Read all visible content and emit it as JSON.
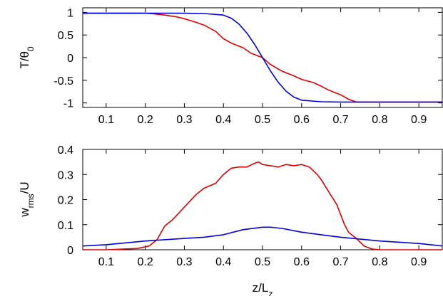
{
  "chart_data": [
    {
      "type": "line",
      "xlabel": "",
      "ylabel": "T/θ",
      "ylabel_subscript": "0",
      "xlim": [
        0.04,
        0.96
      ],
      "ylim": [
        -1.1,
        1.1
      ],
      "xticks": [
        "0.1",
        "0.2",
        "0.3",
        "0.4",
        "0.5",
        "0.6",
        "0.7",
        "0.8",
        "0.9"
      ],
      "yticks": [
        "1",
        "0.5",
        "0",
        "-0.5",
        "-1"
      ],
      "grid": false,
      "series": [
        {
          "color": "#e00000",
          "x": [
            0.04,
            0.1,
            0.15,
            0.2,
            0.22,
            0.25,
            0.28,
            0.3,
            0.33,
            0.35,
            0.38,
            0.4,
            0.42,
            0.45,
            0.47,
            0.5,
            0.52,
            0.55,
            0.58,
            0.6,
            0.63,
            0.65,
            0.67,
            0.7,
            0.72,
            0.74,
            0.8,
            0.9,
            0.96
          ],
          "y": [
            0.98,
            0.98,
            0.98,
            0.98,
            0.97,
            0.94,
            0.9,
            0.86,
            0.78,
            0.72,
            0.58,
            0.42,
            0.32,
            0.22,
            0.1,
            0.0,
            -0.15,
            -0.3,
            -0.4,
            -0.48,
            -0.55,
            -0.63,
            -0.72,
            -0.82,
            -0.92,
            -0.98,
            -0.98,
            -0.98,
            -0.98
          ]
        },
        {
          "color": "#0000e0",
          "x": [
            0.04,
            0.1,
            0.2,
            0.3,
            0.35,
            0.4,
            0.42,
            0.44,
            0.46,
            0.48,
            0.5,
            0.52,
            0.54,
            0.56,
            0.58,
            0.6,
            0.65,
            0.7,
            0.8,
            0.9,
            0.96
          ],
          "y": [
            0.98,
            0.98,
            0.98,
            0.98,
            0.975,
            0.94,
            0.87,
            0.74,
            0.54,
            0.29,
            0.0,
            -0.29,
            -0.54,
            -0.74,
            -0.87,
            -0.94,
            -0.975,
            -0.98,
            -0.98,
            -0.98,
            -0.98
          ]
        }
      ]
    },
    {
      "type": "line",
      "xlabel": "z/L",
      "xlabel_subscript": "z",
      "ylabel": "w",
      "ylabel_subscript": "rms",
      "ylabel_suffix": "/U",
      "xlim": [
        0.04,
        0.96
      ],
      "ylim": [
        0,
        0.4
      ],
      "xticks": [
        "0.1",
        "0.2",
        "0.3",
        "0.4",
        "0.5",
        "0.6",
        "0.7",
        "0.8",
        "0.9"
      ],
      "yticks": [
        "0.4",
        "0.3",
        "0.2",
        "0.1",
        "0"
      ],
      "grid": false,
      "series": [
        {
          "color": "#e00000",
          "x": [
            0.04,
            0.1,
            0.18,
            0.21,
            0.23,
            0.25,
            0.27,
            0.3,
            0.33,
            0.35,
            0.38,
            0.4,
            0.42,
            0.44,
            0.46,
            0.48,
            0.49,
            0.5,
            0.52,
            0.54,
            0.56,
            0.58,
            0.6,
            0.62,
            0.64,
            0.65,
            0.67,
            0.69,
            0.71,
            0.72,
            0.74,
            0.76,
            0.78,
            0.8,
            0.9,
            0.96
          ],
          "y": [
            0.0,
            0.0,
            0.005,
            0.015,
            0.04,
            0.095,
            0.12,
            0.17,
            0.22,
            0.245,
            0.265,
            0.3,
            0.325,
            0.33,
            0.33,
            0.345,
            0.35,
            0.34,
            0.335,
            0.33,
            0.34,
            0.335,
            0.34,
            0.33,
            0.3,
            0.28,
            0.23,
            0.18,
            0.1,
            0.07,
            0.045,
            0.015,
            0.003,
            0.0,
            0.0,
            0.0
          ]
        },
        {
          "color": "#0000e0",
          "x": [
            0.04,
            0.1,
            0.2,
            0.3,
            0.35,
            0.4,
            0.45,
            0.5,
            0.52,
            0.55,
            0.6,
            0.65,
            0.7,
            0.8,
            0.9,
            0.96
          ],
          "y": [
            0.015,
            0.02,
            0.035,
            0.045,
            0.05,
            0.06,
            0.08,
            0.09,
            0.09,
            0.085,
            0.07,
            0.06,
            0.05,
            0.035,
            0.025,
            0.015
          ]
        }
      ]
    }
  ]
}
